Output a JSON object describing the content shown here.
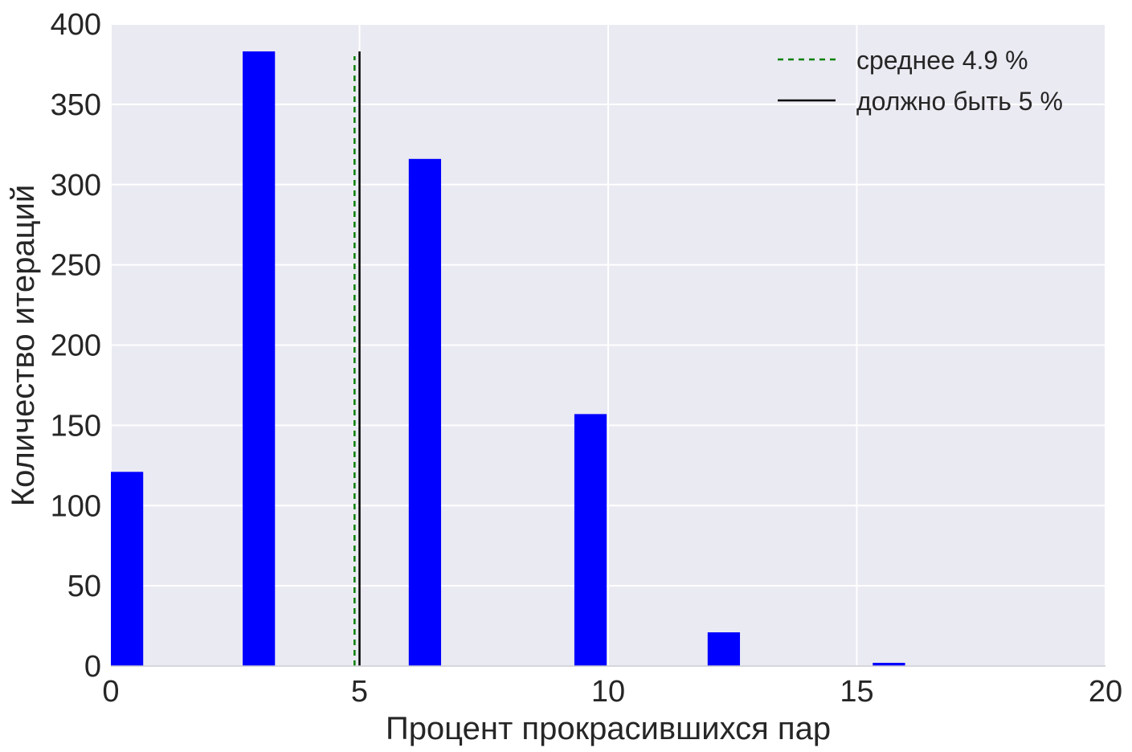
{
  "chart_data": {
    "type": "bar",
    "title": "",
    "xlabel": "Процент прокрасившихся пар",
    "ylabel": "Количество итераций",
    "xlim": [
      0,
      20
    ],
    "ylim": [
      0,
      400
    ],
    "xticks": [
      0,
      5,
      10,
      15,
      20
    ],
    "yticks": [
      0,
      50,
      100,
      150,
      200,
      250,
      300,
      350,
      400
    ],
    "grid": true,
    "legend_position": "top-right",
    "bar_color": "#0000ff",
    "background_color": "#eaeaf2",
    "bars": [
      {
        "x0": 0.0,
        "x1": 0.65,
        "value": 121
      },
      {
        "x0": 2.65,
        "x1": 3.3,
        "value": 383
      },
      {
        "x0": 5.99,
        "x1": 6.64,
        "value": 316
      },
      {
        "x0": 9.32,
        "x1": 9.97,
        "value": 157
      },
      {
        "x0": 12.0,
        "x1": 12.65,
        "value": 21
      },
      {
        "x0": 15.32,
        "x1": 15.97,
        "value": 2
      }
    ],
    "lines": [
      {
        "name": "среднее 4.9 %",
        "x": 4.9,
        "y_top": 380,
        "color": "#008000",
        "style": "dashed"
      },
      {
        "name": "должно быть 5 %",
        "x": 5.0,
        "y_top": 383,
        "color": "#000000",
        "style": "solid"
      }
    ]
  }
}
